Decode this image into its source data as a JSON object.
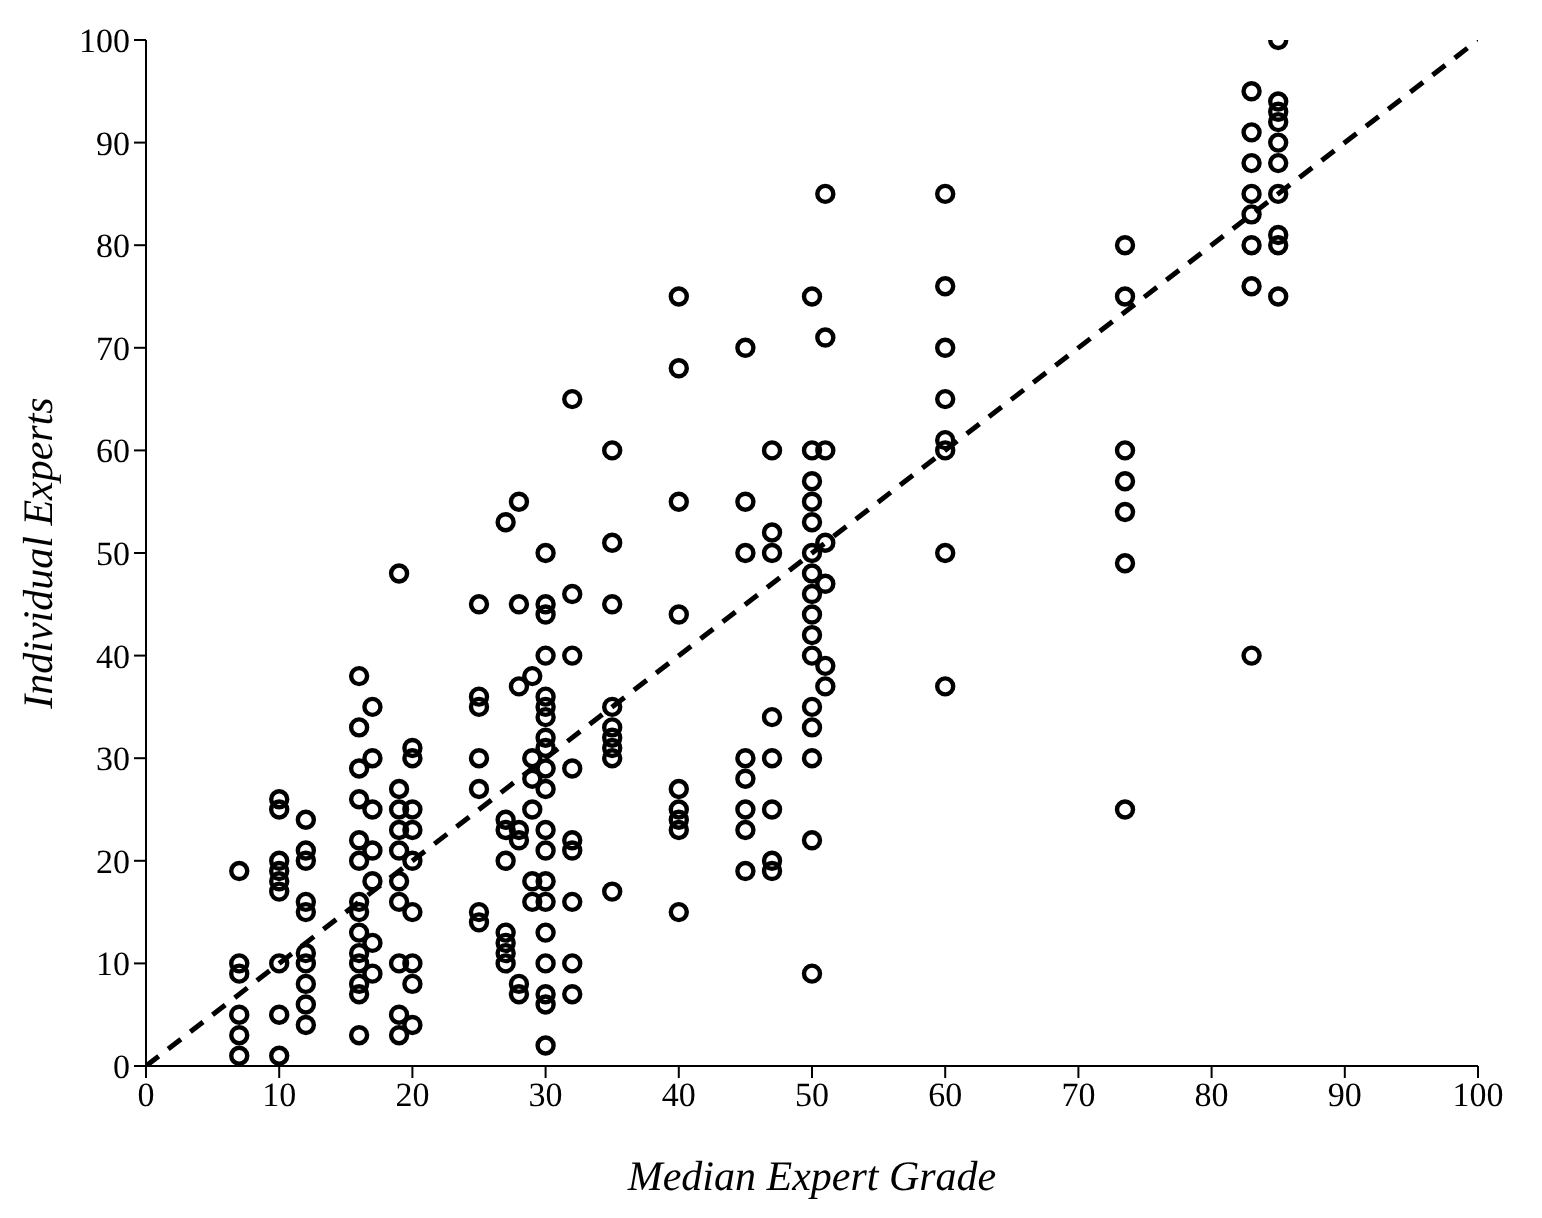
{
  "chart_data": {
    "type": "scatter",
    "xlabel": "Median Expert Grade",
    "ylabel": "Individual Experts",
    "xlim": [
      0,
      100
    ],
    "ylim": [
      0,
      100
    ],
    "xticks": [
      0,
      10,
      20,
      30,
      40,
      50,
      60,
      70,
      80,
      90,
      100
    ],
    "yticks": [
      0,
      10,
      20,
      30,
      40,
      50,
      60,
      70,
      80,
      90,
      100
    ],
    "grid": false,
    "legend": false,
    "marker": "circle",
    "series": [
      {
        "color": "#000000",
        "x": [
          7,
          7,
          7,
          7,
          7,
          7,
          10,
          10,
          10,
          10,
          10,
          10,
          10,
          10,
          10,
          12,
          12,
          12,
          12,
          12,
          12,
          12,
          12,
          12,
          12,
          16,
          16,
          16,
          16,
          16,
          16,
          16,
          16,
          16,
          16,
          16,
          16,
          16,
          16,
          17,
          17,
          17,
          17,
          17,
          17,
          17,
          19,
          19,
          19,
          19,
          19,
          19,
          19,
          19,
          19,
          19,
          20,
          20,
          20,
          20,
          20,
          20,
          20,
          20,
          20,
          25,
          25,
          25,
          25,
          25,
          25,
          25,
          27,
          27,
          27,
          27,
          27,
          27,
          27,
          27,
          28,
          28,
          28,
          28,
          28,
          28,
          28,
          29,
          29,
          29,
          29,
          29,
          29,
          30,
          30,
          30,
          30,
          30,
          30,
          30,
          30,
          30,
          30,
          30,
          30,
          30,
          30,
          30,
          30,
          30,
          30,
          30,
          30,
          32,
          32,
          32,
          32,
          32,
          32,
          32,
          32,
          32,
          35,
          35,
          35,
          35,
          35,
          35,
          35,
          35,
          35,
          40,
          40,
          40,
          40,
          40,
          40,
          40,
          40,
          40,
          45,
          45,
          45,
          45,
          45,
          45,
          45,
          45,
          47,
          47,
          47,
          47,
          47,
          47,
          47,
          47,
          50,
          50,
          50,
          50,
          50,
          50,
          50,
          50,
          50,
          50,
          50,
          50,
          50,
          50,
          50,
          50,
          51,
          51,
          51,
          51,
          51,
          51,
          51,
          60,
          60,
          60,
          60,
          60,
          60,
          60,
          60,
          73.5,
          73.5,
          73.5,
          73.5,
          73.5,
          73.5,
          73.5,
          83,
          83,
          83,
          83,
          83,
          83,
          83,
          83,
          85,
          85,
          85,
          85,
          85,
          85,
          85,
          85,
          85,
          85
        ],
        "values": [
          19,
          10,
          9,
          5,
          3,
          1,
          26,
          25,
          20,
          19,
          18,
          17,
          10,
          5,
          1,
          24,
          21,
          20,
          16,
          15,
          11,
          10,
          8,
          6,
          4,
          38,
          33,
          29,
          26,
          22,
          20,
          16,
          15,
          13,
          11,
          10,
          8,
          7,
          3,
          35,
          30,
          25,
          21,
          18,
          12,
          9,
          48,
          27,
          25,
          23,
          21,
          18,
          16,
          10,
          5,
          3,
          31,
          30,
          25,
          23,
          20,
          15,
          10,
          8,
          4,
          45,
          36,
          35,
          30,
          27,
          15,
          14,
          53,
          24,
          23,
          20,
          13,
          12,
          11,
          10,
          55,
          45,
          37,
          23,
          22,
          8,
          7,
          38,
          30,
          28,
          25,
          18,
          16,
          50,
          45,
          44,
          40,
          36,
          35,
          34,
          32,
          31,
          29,
          27,
          23,
          21,
          18,
          16,
          13,
          10,
          7,
          6,
          2,
          65,
          46,
          40,
          29,
          22,
          21,
          16,
          10,
          7,
          60,
          51,
          45,
          35,
          33,
          32,
          31,
          30,
          17,
          75,
          68,
          55,
          44,
          27,
          25,
          24,
          23,
          15,
          70,
          55,
          50,
          30,
          28,
          25,
          23,
          19,
          60,
          52,
          50,
          34,
          30,
          25,
          20,
          19,
          75,
          60,
          57,
          55,
          53,
          50,
          48,
          46,
          44,
          42,
          40,
          35,
          33,
          30,
          22,
          9,
          85,
          71,
          60,
          51,
          47,
          39,
          37,
          85,
          76,
          70,
          65,
          61,
          60,
          50,
          37,
          80,
          75,
          60,
          57,
          54,
          49,
          25,
          95,
          91,
          88,
          85,
          83,
          80,
          76,
          40,
          100,
          94,
          93,
          92,
          90,
          88,
          85,
          81,
          80,
          75
        ]
      },
      {
        "type": "line",
        "color": "#000000",
        "line_style": "dashed",
        "marker": "none",
        "x": [
          0,
          100
        ],
        "values": [
          0,
          100
        ]
      }
    ]
  }
}
